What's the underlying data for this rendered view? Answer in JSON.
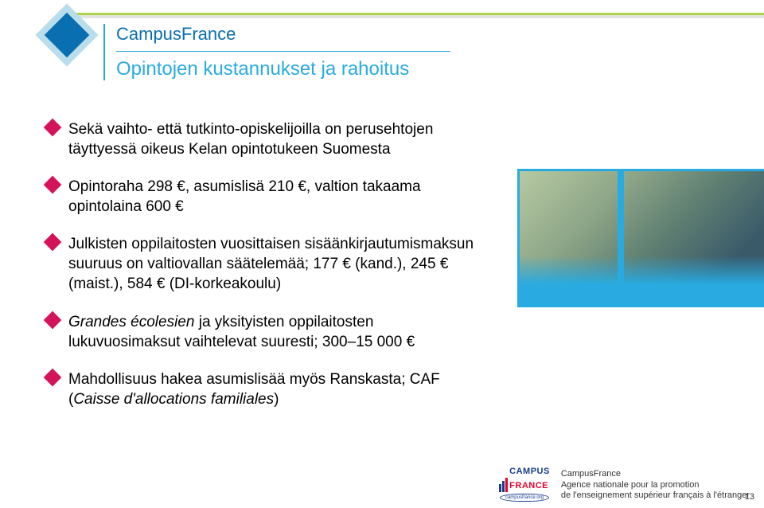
{
  "header": {
    "brand": "CampusFrance",
    "subtitle": "Opintojen kustannukset ja rahoitus"
  },
  "bullets": [
    {
      "text": "Sekä vaihto- että tutkinto-opiskelijoilla on perusehtojen täyttyessä oikeus Kelan opintotukeen Suomesta"
    },
    {
      "text": "Opintoraha 298 €, asumislisä 210 €, valtion takaama opintolaina 600 €"
    },
    {
      "text": "Julkisten oppilaitosten vuosittaisen sisäänkirjautumismaksun suuruus on valtiovallan säätelemää; 177 € (kand.), 245 € (maist.),  584 € (DI-korkeakoulu)"
    },
    {
      "text_html": "<i>Grandes écolesien</i> ja yksityisten oppilaitosten lukuvuosimaksut vaihtelevat suuresti; 300–15 000 €"
    },
    {
      "text_html": "Mahdollisuus hakea asumislisää myös Ranskasta; CAF (<i>Caisse d'allocations familiales</i>)"
    }
  ],
  "footer": {
    "brand": "CampusFrance",
    "line1": "Agence nationale pour la promotion",
    "line2": "de l'enseignement supérieur français à l'étranger",
    "logo_url_label": "campusfrance.org",
    "page_number": "13"
  },
  "colors": {
    "accent_blue": "#0a6fb0",
    "light_blue": "#29abe2",
    "lime": "#b0d24a",
    "marker": "#d4145a",
    "logo_blue": "#183d8e",
    "logo_red": "#e4032e"
  }
}
